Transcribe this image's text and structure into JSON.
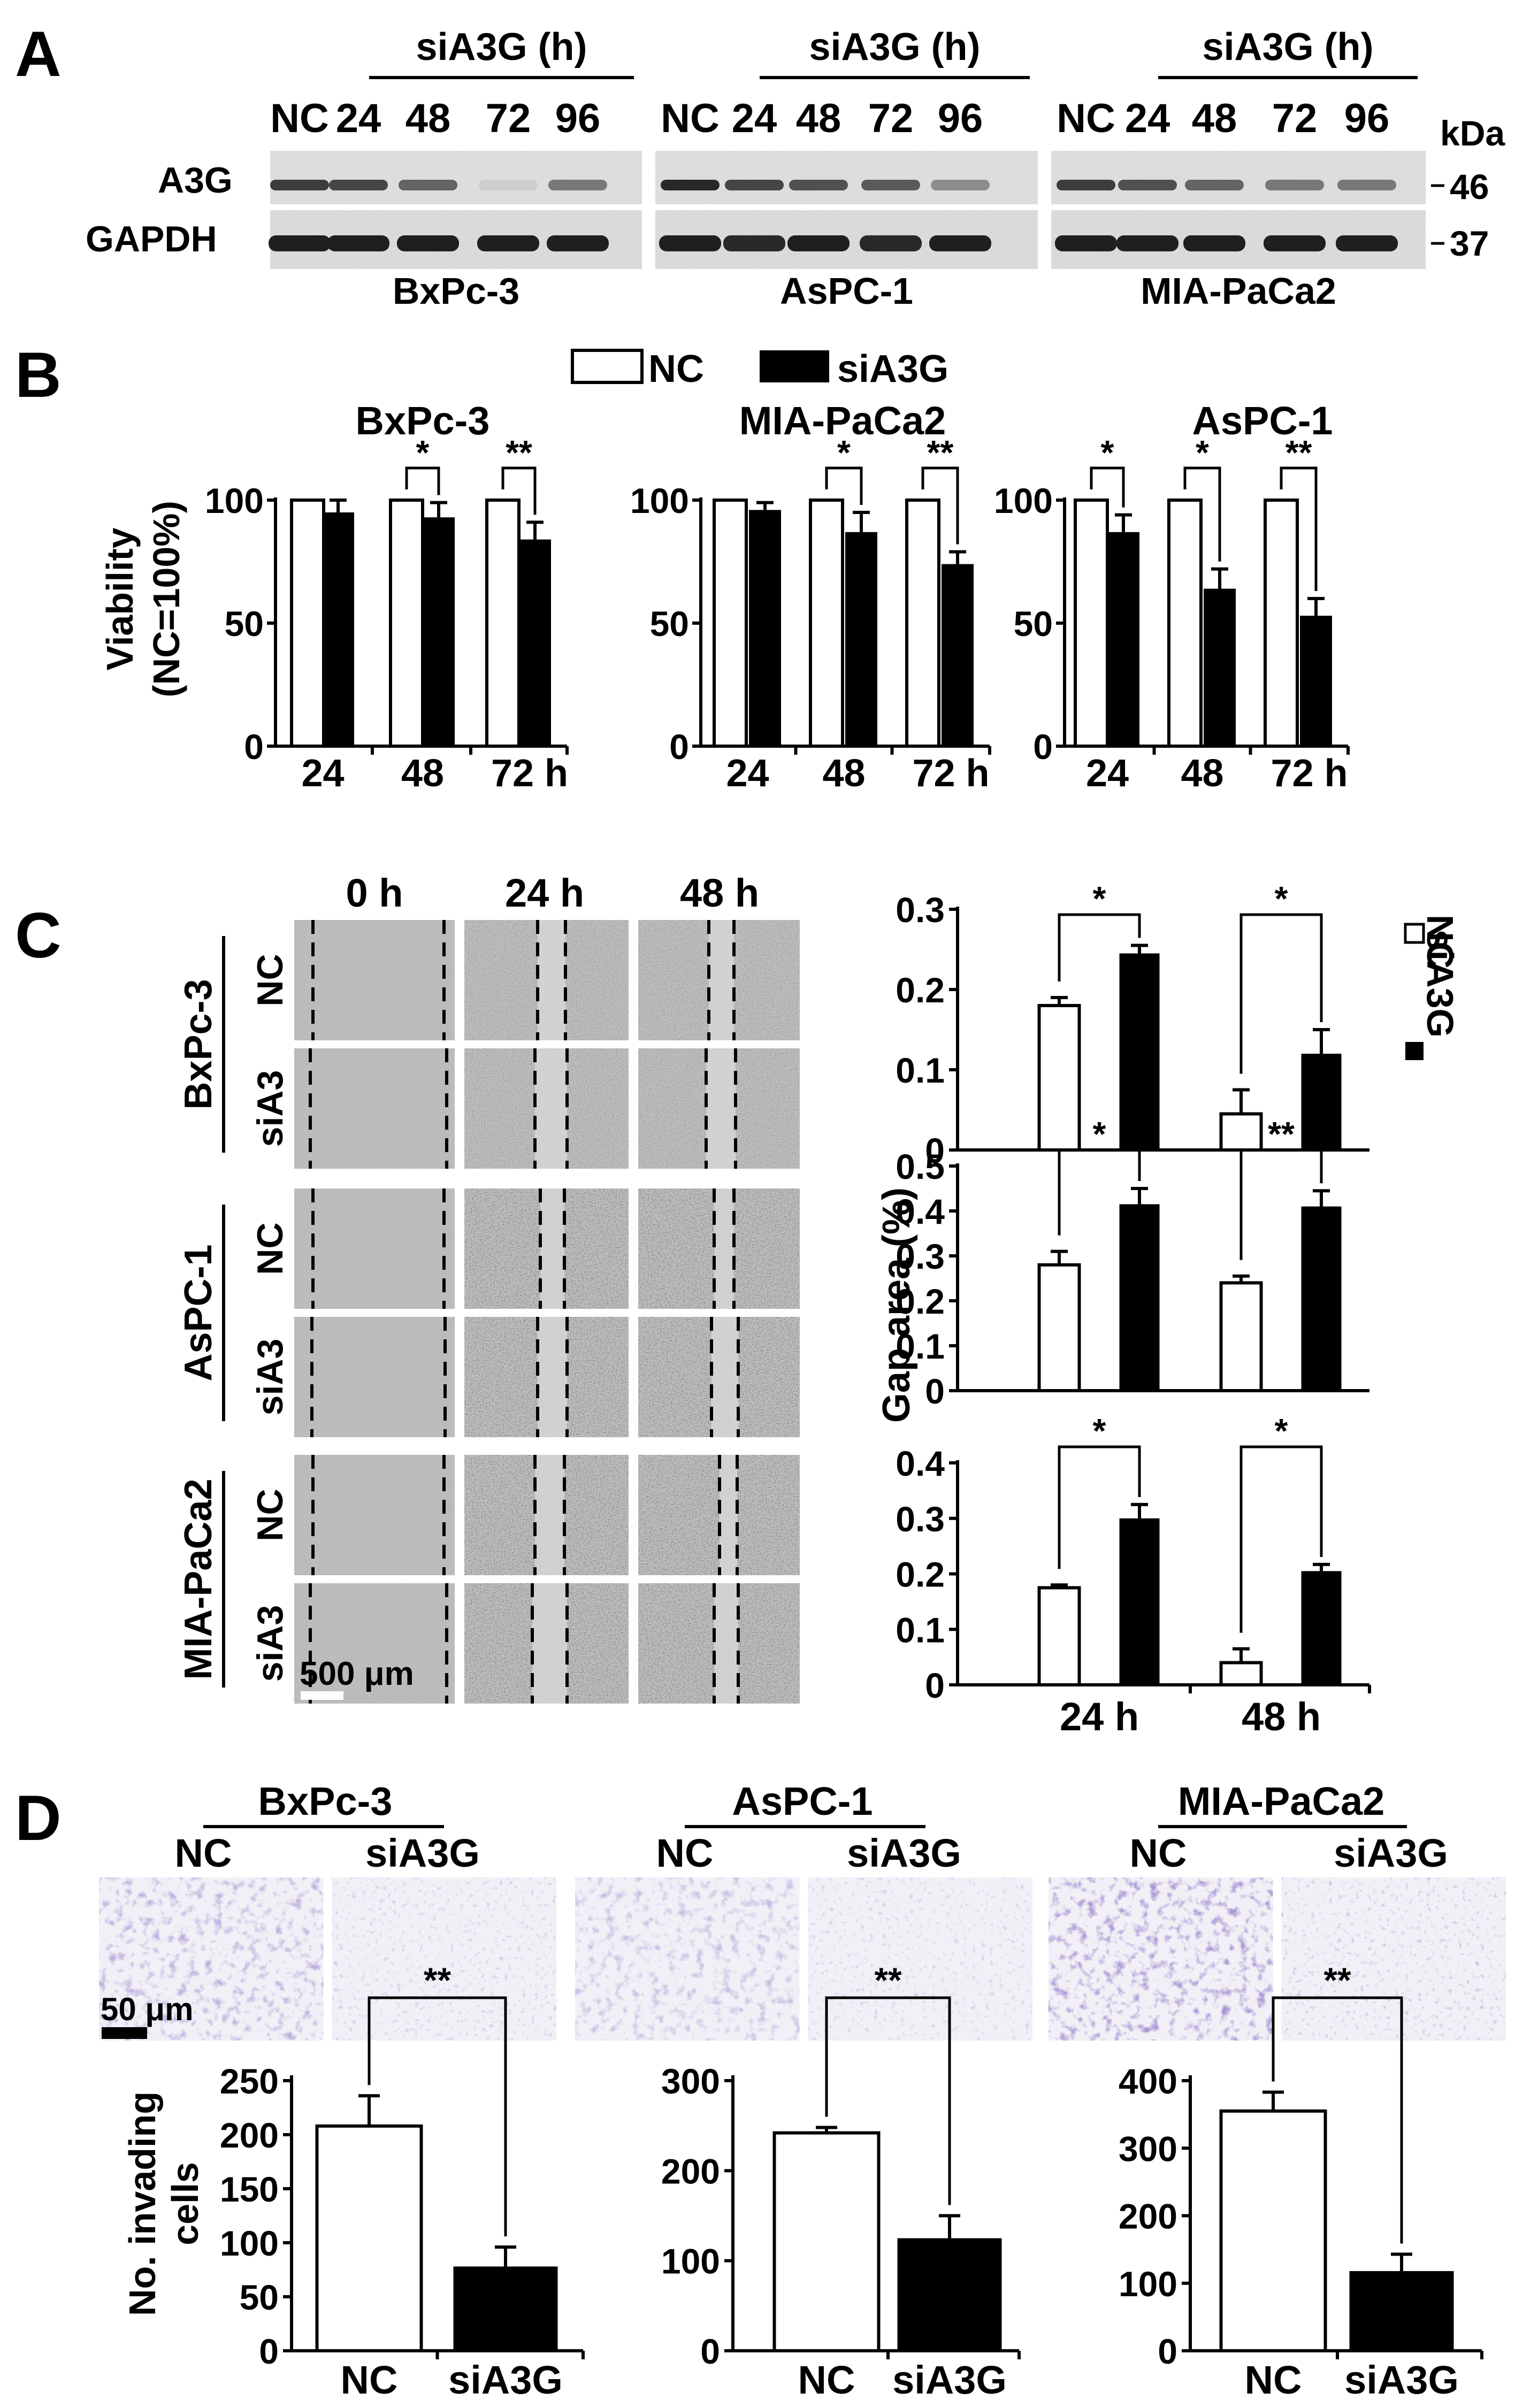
{
  "panel_letters": {
    "a": "A",
    "b": "B",
    "c": "C",
    "d": "D"
  },
  "panel_a": {
    "group_header": "siA3G (h)",
    "lane_labels": [
      "NC",
      "24",
      "48",
      "72",
      "96"
    ],
    "row_labels": [
      "A3G",
      "GAPDH"
    ],
    "cell_lines": [
      "BxPc-3",
      "AsPC-1",
      "MIA-PaCa2"
    ],
    "kda_label": "kDa",
    "markers": [
      "46",
      "37"
    ],
    "a3g_intensity": [
      [
        0.85,
        0.8,
        0.65,
        0.12,
        0.55
      ],
      [
        0.95,
        0.8,
        0.75,
        0.7,
        0.45
      ],
      [
        0.85,
        0.75,
        0.65,
        0.55,
        0.55
      ]
    ],
    "gapdh_intensity": [
      [
        0.95,
        0.95,
        0.95,
        0.95,
        0.95
      ],
      [
        0.95,
        0.9,
        0.95,
        0.9,
        0.95
      ],
      [
        0.95,
        0.95,
        0.95,
        0.95,
        0.95
      ]
    ]
  },
  "legend": {
    "nc": "NC",
    "si": "siA3G"
  },
  "panel_b": {
    "ylabel_1": "Viability",
    "ylabel_2": "(NC=100%)",
    "yticks": [
      "0",
      "50",
      "100"
    ],
    "xticks": [
      "24",
      "48",
      "72 h"
    ],
    "charts": [
      {
        "title": "BxPc-3",
        "nc": [
          100,
          100,
          100
        ],
        "si": [
          95,
          93,
          84
        ],
        "err": [
          5,
          6,
          7
        ],
        "sig": [
          "",
          "*",
          "**"
        ]
      },
      {
        "title": "MIA-PaCa2",
        "nc": [
          100,
          100,
          100
        ],
        "si": [
          96,
          87,
          74
        ],
        "err": [
          3,
          8,
          5
        ],
        "sig": [
          "",
          "*",
          "**"
        ]
      },
      {
        "title": "AsPC-1",
        "nc": [
          100,
          100,
          100
        ],
        "si": [
          87,
          64,
          53
        ],
        "err": [
          7,
          8,
          7
        ],
        "sig": [
          "*",
          "*",
          "**"
        ]
      }
    ]
  },
  "panel_c": {
    "time_labels": [
      "0 h",
      "24 h",
      "48 h"
    ],
    "cell_lines": [
      "BxPc-3",
      "AsPC-1",
      "MIA-PaCa2"
    ],
    "row_labels": [
      "NC",
      "siA3"
    ],
    "scale_bar": "500 μm",
    "ylabel": "Gap area (%)",
    "xticks": [
      "24 h",
      "48 h"
    ],
    "legend_nc": "NC",
    "legend_si": "siA3G",
    "charts": [
      {
        "yticks": [
          "0",
          "0.1",
          "0.2",
          "0.3"
        ],
        "ymax": 0.3,
        "nc": [
          0.18,
          0.045
        ],
        "si": [
          0.245,
          0.12
        ],
        "nc_err": [
          0.01,
          0.03
        ],
        "si_err": [
          0.01,
          0.03
        ],
        "sig": [
          "*",
          "*"
        ]
      },
      {
        "yticks": [
          "0",
          "0.1",
          "0.2",
          "0.3",
          "0.4",
          "0.5"
        ],
        "ymax": 0.5,
        "nc": [
          0.28,
          0.24
        ],
        "si": [
          0.415,
          0.41
        ],
        "nc_err": [
          0.03,
          0.015
        ],
        "si_err": [
          0.035,
          0.035
        ],
        "sig": [
          "*",
          "**"
        ]
      },
      {
        "yticks": [
          "0",
          "0.1",
          "0.2",
          "0.3",
          "0.4"
        ],
        "ymax": 0.4,
        "nc": [
          0.175,
          0.04
        ],
        "si": [
          0.3,
          0.205
        ],
        "nc_err": [
          0.005,
          0.025
        ],
        "si_err": [
          0.025,
          0.012
        ],
        "sig": [
          "*",
          "*"
        ]
      }
    ]
  },
  "panel_d": {
    "cell_lines": [
      "BxPc-3",
      "AsPC-1",
      "MIA-PaCa2"
    ],
    "img_labels": [
      "NC",
      "siA3G"
    ],
    "scale_bar": "50 μm",
    "ylabel_1": "No. invading",
    "ylabel_2": "cells",
    "xticks": [
      "NC",
      "siA3G"
    ],
    "charts": [
      {
        "yticks": [
          "0",
          "50",
          "100",
          "150",
          "200",
          "250"
        ],
        "ymax": 250,
        "nc": 208,
        "si": 78,
        "nc_err": 28,
        "si_err": 18,
        "sig": "**"
      },
      {
        "yticks": [
          "0",
          "100",
          "200",
          "300"
        ],
        "ymax": 300,
        "nc": 242,
        "si": 125,
        "nc_err": 6,
        "si_err": 25,
        "sig": "**"
      },
      {
        "yticks": [
          "0",
          "100",
          "200",
          "300",
          "400"
        ],
        "ymax": 400,
        "nc": 355,
        "si": 118,
        "nc_err": 28,
        "si_err": 25,
        "sig": "**"
      }
    ]
  }
}
